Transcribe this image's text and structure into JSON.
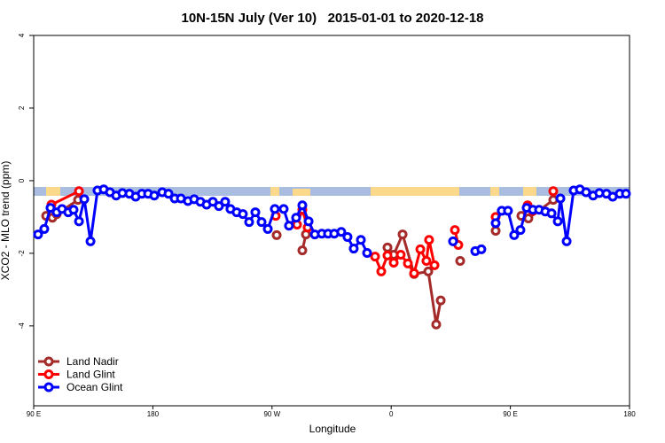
{
  "chart_data": {
    "type": "line",
    "title": "10N-15N July (Ver 10)   2015-01-01 to 2020-12-18",
    "x_label": "Longitude",
    "y_label": "XCO2 - MLO trend (ppm)",
    "xlim": [
      90,
      540
    ],
    "xticks": [
      {
        "value": 90,
        "label": "90 E"
      },
      180,
      {
        "value": 270,
        "label": "90 W"
      },
      {
        "value": 360,
        "label": "0"
      },
      {
        "value": 450,
        "label": "90 E"
      },
      {
        "value": 540,
        "label": "180"
      }
    ],
    "ylim": [
      -6.2,
      4
    ],
    "yticks": [
      -4,
      -2,
      0,
      2,
      4
    ],
    "legend": "bottom-left",
    "series": [
      {
        "name": "Land Nadir",
        "color": "#a52a2a",
        "x": [
          99.4,
          104.1,
          107.4,
          123.5,
          200,
          273.5,
          280,
          292.9,
          295.6,
          330,
          357.2,
          361.9,
          368.6,
          377.3,
          388.0,
          394.0,
          397.4,
          408,
          412.1,
          430,
          438.9,
          460,
          458.3,
          463.6,
          482.4
        ],
        "values": [
          -0.97,
          -1.02,
          -0.92,
          -0.53,
          null,
          -1.5,
          null,
          -1.92,
          -1.48,
          null,
          -1.84,
          -2.04,
          -1.48,
          -2.57,
          -2.5,
          -3.96,
          -3.3,
          null,
          -2.21,
          null,
          -1.38,
          null,
          -0.97,
          -1.04,
          -0.53
        ]
      },
      {
        "name": "Land Glint",
        "color": "#ff0000",
        "x": [
          103.4,
          124.2,
          200,
          272.8,
          278,
          288.9,
          292.9,
          296.9,
          320,
          347.8,
          352.5,
          357.2,
          361.9,
          367.2,
          372.6,
          377.3,
          382.0,
          386.6,
          388.6,
          392.7,
          400,
          408.1,
          410.7,
          430,
          438.9,
          450,
          463.0,
          467.0,
          475,
          482.4
        ],
        "values": [
          -0.66,
          -0.29,
          null,
          -0.97,
          null,
          -1.21,
          -0.8,
          -1.29,
          null,
          -2.09,
          -2.5,
          -2.06,
          -2.26,
          -2.04,
          -2.28,
          -2.55,
          -1.89,
          -2.21,
          -1.63,
          -2.33,
          null,
          -1.36,
          -1.77,
          null,
          -1.0,
          null,
          -0.68,
          -0.83,
          null,
          -0.29
        ]
      },
      {
        "name": "Ocean Glint",
        "color": "#0000ff",
        "x": [
          93.3,
          98.0,
          102.7,
          107.4,
          111.4,
          116.1,
          120.1,
          124.2,
          128.2,
          132.9,
          138.2,
          142.9,
          147.6,
          152.3,
          157.0,
          162.3,
          167.0,
          171.7,
          176.4,
          181.1,
          187.1,
          191.8,
          196.5,
          201.2,
          206.5,
          211.2,
          215.9,
          220.6,
          225.3,
          229.9,
          234.6,
          238.6,
          243.3,
          248.0,
          252.7,
          257.4,
          262.1,
          266.8,
          272.1,
          278.8,
          282.8,
          288.2,
          292.9,
          297.6,
          302.3,
          307.6,
          312.3,
          317.0,
          322.3,
          327.0,
          331.7,
          337.1,
          341.8,
          374,
          406.7,
          415,
          423.5,
          428.1,
          433,
          438.9,
          443.5,
          448.2,
          452.9,
          457.6,
          462.3,
          467.0,
          471.7,
          476.4,
          481.1,
          485.8,
          487.8,
          492.5,
          497.8,
          502.5,
          507.2,
          512.5,
          517.2,
          522.6,
          527.3,
          532.6,
          537.3
        ],
        "values": [
          -1.48,
          -1.33,
          -0.75,
          -0.87,
          -0.78,
          -0.87,
          -0.8,
          -1.12,
          -0.51,
          -1.67,
          -0.27,
          -0.24,
          -0.32,
          -0.41,
          -0.34,
          -0.36,
          -0.44,
          -0.36,
          -0.36,
          -0.41,
          -0.32,
          -0.36,
          -0.49,
          -0.49,
          -0.56,
          -0.51,
          -0.58,
          -0.66,
          -0.58,
          -0.7,
          -0.58,
          -0.78,
          -0.87,
          -0.92,
          -1.14,
          -0.87,
          -1.14,
          -1.33,
          -0.78,
          -0.78,
          -1.24,
          -1.02,
          -0.68,
          -1.12,
          -1.48,
          -1.46,
          -1.46,
          -1.46,
          -1.41,
          -1.55,
          -1.87,
          -1.63,
          -1.99,
          null,
          -1.67,
          null,
          -1.94,
          -1.89,
          null,
          -1.17,
          -0.83,
          -0.83,
          -1.5,
          -1.36,
          -0.75,
          -0.8,
          -0.8,
          -0.85,
          -0.9,
          -1.12,
          -0.49,
          -1.67,
          -0.27,
          -0.24,
          -0.32,
          -0.41,
          -0.34,
          -0.36,
          -0.44,
          -0.36,
          -0.36
        ]
      }
    ]
  }
}
